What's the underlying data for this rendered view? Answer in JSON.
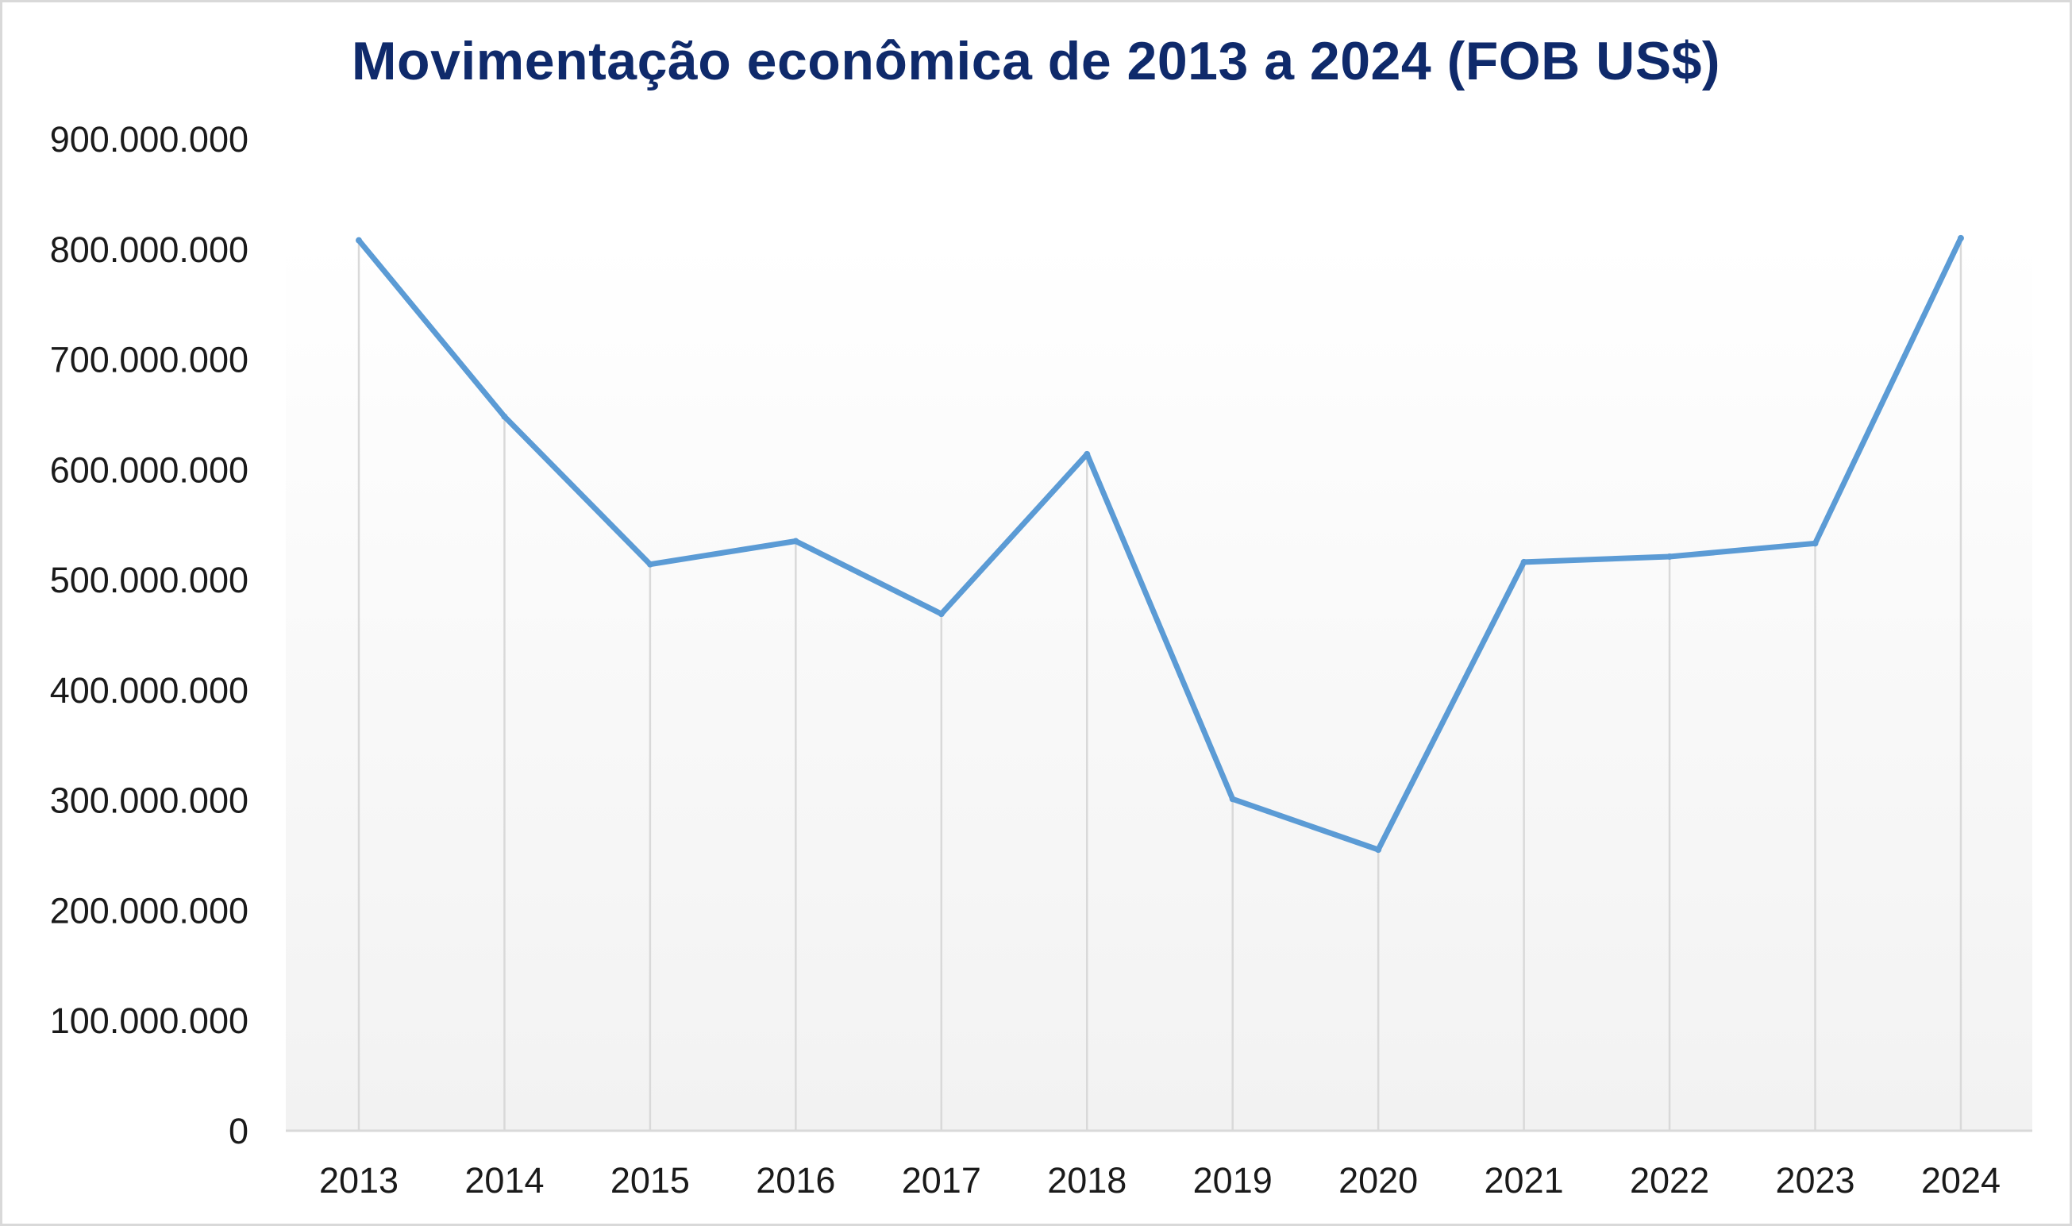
{
  "chart_data": {
    "type": "line",
    "title": "Movimentação econômica de 2013 a 2024 (FOB US$)",
    "xlabel": "",
    "ylabel": "",
    "categories": [
      "2013",
      "2014",
      "2015",
      "2016",
      "2017",
      "2018",
      "2019",
      "2020",
      "2021",
      "2022",
      "2023",
      "2024"
    ],
    "series": [
      {
        "values": [
          808000000,
          648000000,
          514000000,
          535000000,
          469000000,
          614000000,
          301000000,
          255000000,
          516000000,
          521000000,
          533000000,
          810000000
        ]
      }
    ],
    "ylim": [
      0,
      900000000
    ],
    "yticks": [
      0,
      100000000,
      200000000,
      300000000,
      400000000,
      500000000,
      600000000,
      700000000,
      800000000,
      900000000
    ],
    "ytick_labels": [
      "0",
      "100.000.000",
      "200.000.000",
      "300.000.000",
      "400.000.000",
      "500.000.000",
      "600.000.000",
      "700.000.000",
      "800.000.000",
      "900.000.000"
    ],
    "grid": "vertical drop lines only",
    "legend": "none",
    "colors": {
      "line": "#5b9bd5",
      "title": "#0f2a6b",
      "drop_line": "#d9d9d9",
      "axis": "#d9d9d9",
      "background_top": "#ffffff",
      "background_bottom": "#f2f2f2"
    }
  }
}
